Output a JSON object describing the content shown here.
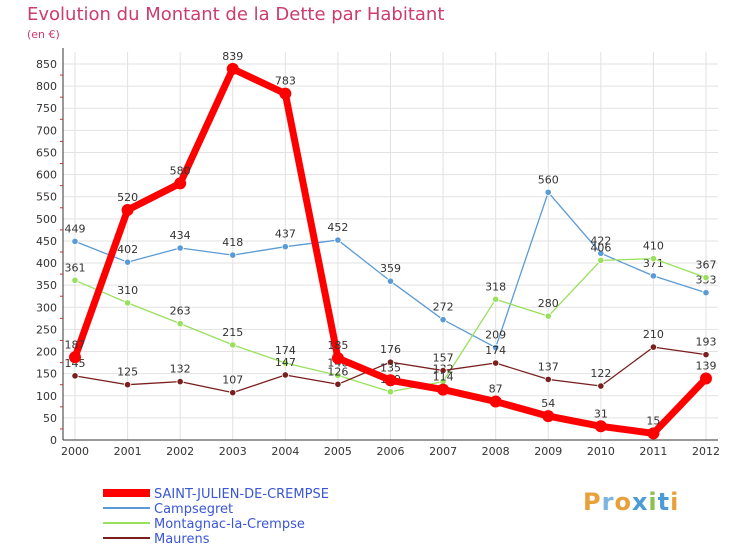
{
  "chart_data": {
    "type": "line",
    "title": "Evolution du Montant de la Dette par Habitant",
    "subtitle": "(en €)",
    "x": [
      "2000",
      "2001",
      "2002",
      "2003",
      "2004",
      "2005",
      "2006",
      "2007",
      "2008",
      "2009",
      "2010",
      "2011",
      "2012"
    ],
    "y_ticks": [
      0,
      50,
      100,
      150,
      200,
      250,
      300,
      350,
      400,
      450,
      500,
      550,
      600,
      650,
      700,
      750,
      800,
      850
    ],
    "ylim": [
      0,
      850
    ],
    "grid": true,
    "legend_position": "bottom-left",
    "series": [
      {
        "name": "SAINT-JULIEN-DE-CREMPSE",
        "color": "#ff0000",
        "emphasis": true,
        "values": [
          187,
          520,
          580,
          839,
          783,
          185,
          135,
          114,
          87,
          54,
          31,
          15,
          139
        ],
        "labels": [
          "187",
          "520",
          "580",
          "839",
          "783",
          "185",
          "135",
          "114",
          "87",
          "54",
          "31",
          "15",
          "139"
        ]
      },
      {
        "name": "Campsegret",
        "color": "#5b9bd5",
        "emphasis": false,
        "values": [
          449,
          402,
          434,
          418,
          437,
          452,
          359,
          272,
          209,
          560,
          422,
          371,
          333
        ],
        "labels": [
          "449",
          "402",
          "434",
          "418",
          "437",
          "452",
          "359",
          "272",
          "209",
          "560",
          "422",
          "371",
          "333"
        ]
      },
      {
        "name": "Montagnac-la-Crempse",
        "color": "#99e05c",
        "emphasis": false,
        "values": [
          361,
          310,
          263,
          215,
          174,
          146,
          109,
          132,
          318,
          280,
          406,
          410,
          367
        ],
        "labels": [
          "361",
          "310",
          "263",
          "215",
          "174",
          "146",
          "109",
          "132",
          "318",
          "280",
          "406",
          "410",
          "367"
        ]
      },
      {
        "name": "Maurens",
        "color": "#7a1f1f",
        "emphasis": false,
        "values": [
          145,
          125,
          132,
          107,
          147,
          126,
          176,
          157,
          174,
          137,
          122,
          210,
          193
        ],
        "labels": [
          "145",
          "125",
          "132",
          "107",
          "147",
          "126",
          "176",
          "157",
          "174",
          "137",
          "122",
          "210",
          "193"
        ]
      }
    ]
  },
  "logo": {
    "text": "Proxiti"
  }
}
